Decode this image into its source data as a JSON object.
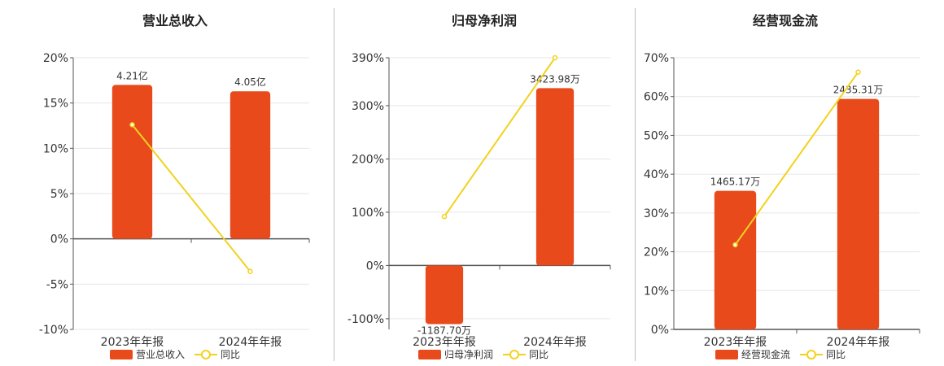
{
  "colors": {
    "bar": "#e84a1b",
    "line": "#f2d21e",
    "grid": "#e6e6e6",
    "axis": "#555555"
  },
  "chart_data": [
    {
      "type": "bar",
      "title": "营业总收入",
      "categories": [
        "2023年年报",
        "2024年年报"
      ],
      "series": [
        {
          "name": "营业总收入",
          "kind": "bar",
          "values": [
            17.0,
            16.3
          ],
          "labels": [
            "4.21亿",
            "4.05亿"
          ]
        },
        {
          "name": "同比",
          "kind": "line",
          "values": [
            12.6,
            -3.6
          ]
        }
      ],
      "yticks": [
        20,
        15,
        10,
        5,
        0,
        -5,
        -10
      ],
      "ytick_labels": [
        "20%",
        "15%",
        "10%",
        "5%",
        "0%",
        "-5%",
        "-10%"
      ],
      "ylim": [
        -10,
        20
      ],
      "legend": [
        "营业总收入",
        "同比"
      ]
    },
    {
      "type": "bar",
      "title": "归母净利润",
      "categories": [
        "2023年年报",
        "2024年年报"
      ],
      "series": [
        {
          "name": "归母净利润",
          "kind": "bar",
          "values": [
            -110,
            333
          ],
          "labels": [
            "-1187.70万",
            "3423.98万"
          ]
        },
        {
          "name": "同比",
          "kind": "line",
          "values": [
            92,
            390
          ]
        }
      ],
      "yticks": [
        390,
        300,
        200,
        100,
        0,
        -100
      ],
      "ytick_labels": [
        "390%",
        "300%",
        "200%",
        "100%",
        "0%",
        "-100%"
      ],
      "ylim": [
        -120,
        390
      ],
      "legend": [
        "归母净利润",
        "同比"
      ]
    },
    {
      "type": "bar",
      "title": "经营现金流",
      "categories": [
        "2023年年报",
        "2024年年报"
      ],
      "series": [
        {
          "name": "经营现金流",
          "kind": "bar",
          "values": [
            35.7,
            59.4
          ],
          "labels": [
            "1465.17万",
            "2435.31万"
          ]
        },
        {
          "name": "同比",
          "kind": "line",
          "values": [
            21.8,
            66.3
          ]
        }
      ],
      "yticks": [
        70,
        60,
        50,
        40,
        30,
        20,
        10,
        0
      ],
      "ytick_labels": [
        "70%",
        "60%",
        "50%",
        "40%",
        "30%",
        "20%",
        "10%",
        "0%"
      ],
      "ylim": [
        0,
        70
      ],
      "legend": [
        "经营现金流",
        "同比"
      ]
    }
  ]
}
